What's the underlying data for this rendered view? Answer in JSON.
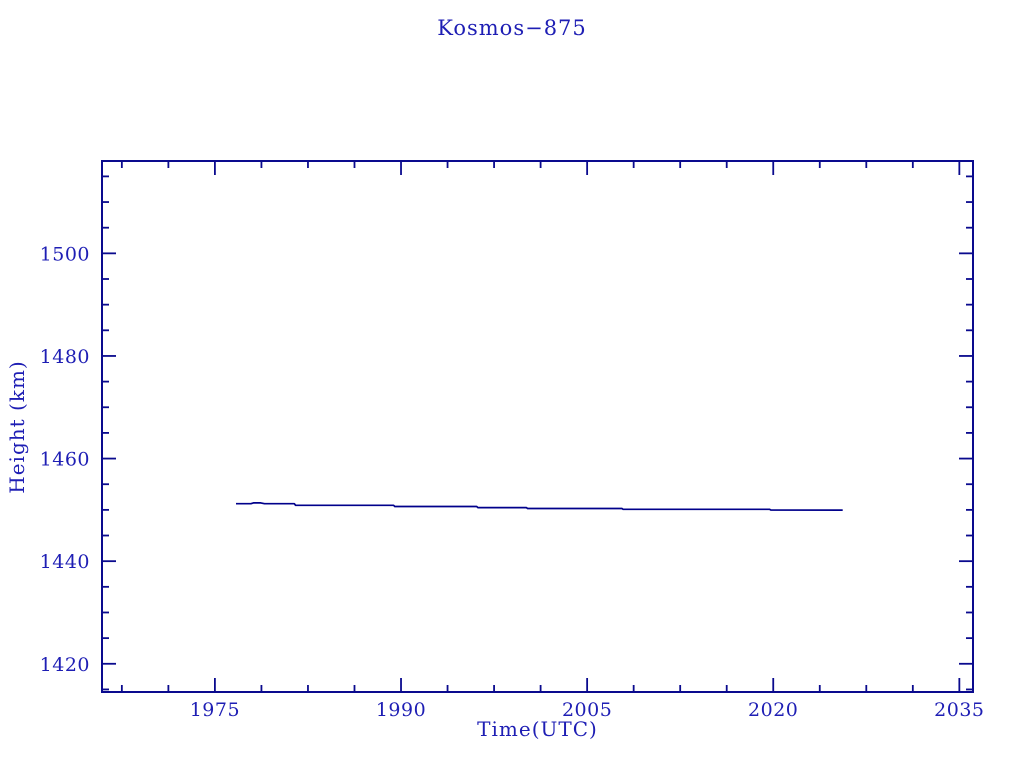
{
  "figure": {
    "background_color": "#ffffff"
  },
  "chart_data": {
    "type": "line",
    "title": "Kosmos−875",
    "xlabel": "Time(UTC)",
    "ylabel": "Height (km)",
    "xlim": [
      1965.9,
      2036.1
    ],
    "ylim": [
      1414.5,
      1518.0
    ],
    "x_major_ticks": [
      1975,
      1990,
      2005,
      2020,
      2035
    ],
    "x_minor_step": 3.75,
    "y_major_ticks": [
      1420,
      1440,
      1460,
      1480,
      1500
    ],
    "y_minor_step": 5,
    "grid": false,
    "legend_position": "none",
    "tick_direction": "in",
    "colors": {
      "text": "#1e1eb4",
      "axis": "#0a0a8e",
      "line": "#00008b"
    },
    "series": [
      {
        "name": "orbit-height",
        "x": [
          1976.7,
          1977.9,
          1978.1,
          1978.7,
          1979.0,
          1981.4,
          1981.5,
          1989.4,
          1989.5,
          1996.1,
          1996.2,
          2000.1,
          2000.2,
          2007.8,
          2007.9,
          2019.7,
          2019.8,
          2025.6
        ],
        "y": [
          1451.2,
          1451.2,
          1451.35,
          1451.35,
          1451.2,
          1451.2,
          1450.9,
          1450.9,
          1450.65,
          1450.65,
          1450.45,
          1450.45,
          1450.27,
          1450.27,
          1450.12,
          1450.12,
          1449.97,
          1449.95
        ]
      }
    ]
  }
}
